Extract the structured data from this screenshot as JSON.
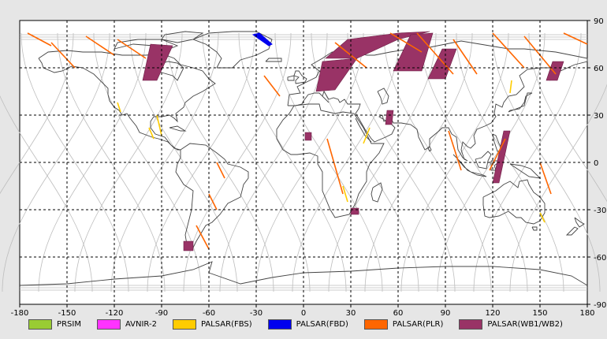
{
  "map": {
    "x_ticks": [
      "-180",
      "-150",
      "-120",
      "-90",
      "-60",
      "-30",
      "0",
      "30",
      "60",
      "90",
      "120",
      "150",
      "180"
    ],
    "y_ticks": [
      "90",
      "60",
      "30",
      "0",
      "-30",
      "-60",
      "-90"
    ],
    "x_range": [
      -180,
      180
    ],
    "y_range": [
      -90,
      90
    ],
    "grid": true,
    "background_color": "#ffffff",
    "coast_color": "#444444",
    "orbit_color": "#bdbdbd"
  },
  "legend": {
    "items": [
      {
        "label": "PRSIM",
        "color": "#99cc33",
        "icon": "green-swatch-icon"
      },
      {
        "label": "AVNIR-2",
        "color": "#ff33ff",
        "icon": "magenta-swatch-icon"
      },
      {
        "label": "PALSAR(FBS)",
        "color": "#ffcc00",
        "icon": "yellow-swatch-icon"
      },
      {
        "label": "PALSAR(FBD)",
        "color": "#0000ee",
        "icon": "blue-swatch-icon"
      },
      {
        "label": "PALSAR(PLR)",
        "color": "#ff6600",
        "icon": "orange-swatch-icon"
      },
      {
        "label": "PALSAR(WB1/WB2)",
        "color": "#993366",
        "icon": "maroon-swatch-icon"
      }
    ]
  },
  "observations": {
    "wb_swaths": [
      {
        "lon": -98,
        "lat": 62
      },
      {
        "lon": 10,
        "lat": 64
      },
      {
        "lon": 45,
        "lat": 76
      },
      {
        "lon": 65,
        "lat": 68
      },
      {
        "lon": 85,
        "lat": 65
      },
      {
        "lon": 160,
        "lat": 58
      },
      {
        "lon": 55,
        "lat": 28
      },
      {
        "lon": 125,
        "lat": 5
      },
      {
        "lon": 3,
        "lat": 17
      },
      {
        "lon": 33,
        "lat": -31
      },
      {
        "lon": -73,
        "lat": -53
      }
    ],
    "fbd_swaths": [
      {
        "lon": -25,
        "lat": 77
      }
    ],
    "plr_tracks": [
      {
        "lon": -170,
        "lat": 77
      },
      {
        "lon": -150,
        "lat": 70
      },
      {
        "lon": -125,
        "lat": 75
      },
      {
        "lon": -110,
        "lat": 72
      },
      {
        "lon": 25,
        "lat": 70
      },
      {
        "lon": 55,
        "lat": 80
      },
      {
        "lon": 80,
        "lat": 78
      },
      {
        "lon": 100,
        "lat": 70
      },
      {
        "lon": 125,
        "lat": 70
      },
      {
        "lon": 150,
        "lat": 70
      },
      {
        "lon": 175,
        "lat": 80
      },
      {
        "lon": -65,
        "lat": -45
      },
      {
        "lon": 97,
        "lat": 2
      },
      {
        "lon": 155,
        "lat": -10
      },
      {
        "lon": 128,
        "lat": 0
      },
      {
        "lon": 22,
        "lat": -5
      },
      {
        "lon": -12,
        "lat": 40
      }
    ],
    "fbs_tracks": [
      {
        "lon": -95,
        "lat": 25
      },
      {
        "lon": -118,
        "lat": 35
      },
      {
        "lon": 27,
        "lat": -20
      },
      {
        "lon": 40,
        "lat": 18
      },
      {
        "lon": 132,
        "lat": 48
      },
      {
        "lon": 152,
        "lat": -35
      }
    ]
  }
}
